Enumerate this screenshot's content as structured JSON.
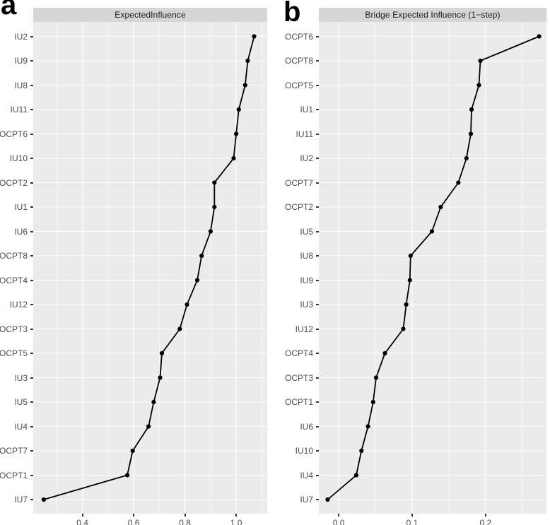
{
  "colors": {
    "background": "#FFFFFF",
    "panel_background": "#EBEBEB",
    "strip_background": "#D6D6D6",
    "gridline": "#FFFFFF",
    "line_and_points": "#000000",
    "axis_text": "#4D4D4D",
    "tick_mark": "#333333",
    "panel_letter": "#000000"
  },
  "chart_data": [
    {
      "type": "line",
      "panel_label": "a",
      "title": "ExpectedInfluence",
      "orientation": "dot-line centrality plot, categories on y-axis (top = highest), value on x-axis",
      "categories": [
        "IU2",
        "IU9",
        "IU8",
        "IU11",
        "OCPT6",
        "IU10",
        "OCPT2",
        "IU1",
        "IU6",
        "OCPT8",
        "OCPT4",
        "IU12",
        "OCPT3",
        "OCPT5",
        "IU3",
        "IU5",
        "IU4",
        "OCPT7",
        "OCPT1",
        "IU7"
      ],
      "values": [
        1.07,
        1.045,
        1.035,
        1.01,
        1.0,
        0.99,
        0.915,
        0.915,
        0.9,
        0.865,
        0.848,
        0.808,
        0.78,
        0.71,
        0.703,
        0.678,
        0.658,
        0.596,
        0.575,
        0.249
      ],
      "xlim": [
        0.208,
        1.121
      ],
      "x_major_ticks": [
        0.4,
        0.6,
        0.8,
        1.0
      ],
      "x_tick_labels": [
        "0.4",
        "0.6",
        "0.8",
        "1.0"
      ],
      "x_minor_gridlines": [
        0.3,
        0.5,
        0.7,
        0.9,
        1.1
      ],
      "grid": "white major/minor vertical gridlines and major horizontal gridlines on gray panel",
      "legend": "none"
    },
    {
      "type": "line",
      "panel_label": "b",
      "title": "Bridge Expected Influence (1−step)",
      "orientation": "dot-line centrality plot, categories on y-axis (top = highest), value on x-axis",
      "categories": [
        "OCPT6",
        "OCPT8",
        "OCPT5",
        "IU1",
        "IU11",
        "IU2",
        "OCPT7",
        "OCPT2",
        "IU5",
        "IU8",
        "IU9",
        "IU3",
        "IU12",
        "OCPT4",
        "OCPT3",
        "OCPT1",
        "IU6",
        "IU10",
        "IU4",
        "IU7"
      ],
      "values": [
        0.273,
        0.193,
        0.191,
        0.181,
        0.18,
        0.174,
        0.163,
        0.139,
        0.127,
        0.098,
        0.097,
        0.092,
        0.088,
        0.063,
        0.051,
        0.047,
        0.04,
        0.031,
        0.024,
        -0.015
      ],
      "xlim": [
        -0.027,
        0.283
      ],
      "x_major_ticks": [
        0.0,
        0.1,
        0.2
      ],
      "x_tick_labels": [
        "0.0",
        "0.1",
        "0.2"
      ],
      "x_minor_gridlines": [
        0.05,
        0.15,
        0.25
      ],
      "grid": "white major/minor vertical gridlines and major horizontal gridlines on gray panel",
      "legend": "none"
    }
  ]
}
